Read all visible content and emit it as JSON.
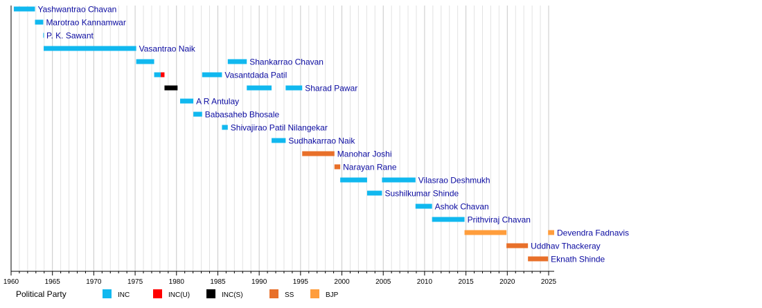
{
  "chart_data": {
    "type": "timeline",
    "xlim": [
      1960,
      2025.67
    ],
    "grid": true,
    "x_ticks": [
      1960,
      1965,
      1970,
      1975,
      1980,
      1985,
      1990,
      1995,
      2000,
      2005,
      2010,
      2015,
      2020,
      2025
    ],
    "parties": [
      {
        "name": "INC",
        "color": "#11b8ef"
      },
      {
        "name": "INC(U)",
        "color": "#ff0000"
      },
      {
        "name": "INC(S)",
        "color": "#000000"
      },
      {
        "name": "SS",
        "color": "#e8702a"
      },
      {
        "name": "BJP",
        "color": "#ff9d3c"
      }
    ],
    "legend_title": "Political Party",
    "legend_position": "bottom",
    "rows": [
      {
        "name": "Yashwantrao Chavan",
        "terms": [
          [
            1960.33,
            1962.89,
            "INC"
          ]
        ]
      },
      {
        "name": "Marotrao Kannamwar",
        "terms": [
          [
            1962.89,
            1963.89,
            "INC"
          ]
        ]
      },
      {
        "name": "P. K. Sawant",
        "terms": [
          [
            1963.89,
            1963.94,
            "INC"
          ]
        ]
      },
      {
        "name": "Vasantrao Naik",
        "terms": [
          [
            1963.94,
            1975.13,
            "INC"
          ]
        ]
      },
      {
        "name": "Shankarrao Chavan",
        "terms": [
          [
            1975.13,
            1977.3,
            "INC"
          ],
          [
            1986.2,
            1988.5,
            "INC"
          ]
        ]
      },
      {
        "name": "Vasantdada Patil",
        "terms": [
          [
            1977.3,
            1978.1,
            "INC"
          ],
          [
            1978.1,
            1978.55,
            "INC(U)"
          ],
          [
            1983.1,
            1985.5,
            "INC"
          ]
        ]
      },
      {
        "name": "Sharad Pawar",
        "terms": [
          [
            1978.55,
            1980.13,
            "INC(S)"
          ],
          [
            1988.5,
            1991.5,
            "INC"
          ],
          [
            1993.2,
            1995.2,
            "INC"
          ]
        ]
      },
      {
        "name": "A R Antulay",
        "terms": [
          [
            1980.44,
            1982.04,
            "INC"
          ]
        ]
      },
      {
        "name": "Babasaheb Bhosale",
        "terms": [
          [
            1982.04,
            1983.1,
            "INC"
          ]
        ]
      },
      {
        "name": "Shivajirao Patil Nilangekar",
        "terms": [
          [
            1985.5,
            1986.2,
            "INC"
          ]
        ]
      },
      {
        "name": "Sudhakarrao Naik",
        "terms": [
          [
            1991.5,
            1993.2,
            "INC"
          ]
        ]
      },
      {
        "name": "Manohar Joshi",
        "terms": [
          [
            1995.2,
            1999.1,
            "SS"
          ]
        ]
      },
      {
        "name": "Narayan Rane",
        "terms": [
          [
            1999.1,
            1999.8,
            "SS"
          ]
        ]
      },
      {
        "name": "Vilasrao Deshmukh",
        "terms": [
          [
            1999.8,
            2003.05,
            "INC"
          ],
          [
            2004.85,
            2008.9,
            "INC"
          ]
        ]
      },
      {
        "name": "Sushilkumar Shinde",
        "terms": [
          [
            2003.05,
            2004.85,
            "INC"
          ]
        ]
      },
      {
        "name": "Ashok Chavan",
        "terms": [
          [
            2008.9,
            2010.9,
            "INC"
          ]
        ]
      },
      {
        "name": "Prithviraj Chavan",
        "terms": [
          [
            2010.9,
            2014.83,
            "INC"
          ]
        ]
      },
      {
        "name": "Devendra Fadnavis",
        "terms": [
          [
            2014.83,
            2019.9,
            "BJP"
          ],
          [
            2024.93,
            2025.67,
            "BJP"
          ]
        ]
      },
      {
        "name": "Uddhav Thackeray",
        "terms": [
          [
            2019.9,
            2022.5,
            "SS"
          ]
        ]
      },
      {
        "name": "Eknath Shinde",
        "terms": [
          [
            2022.5,
            2024.93,
            "SS"
          ]
        ]
      }
    ]
  }
}
